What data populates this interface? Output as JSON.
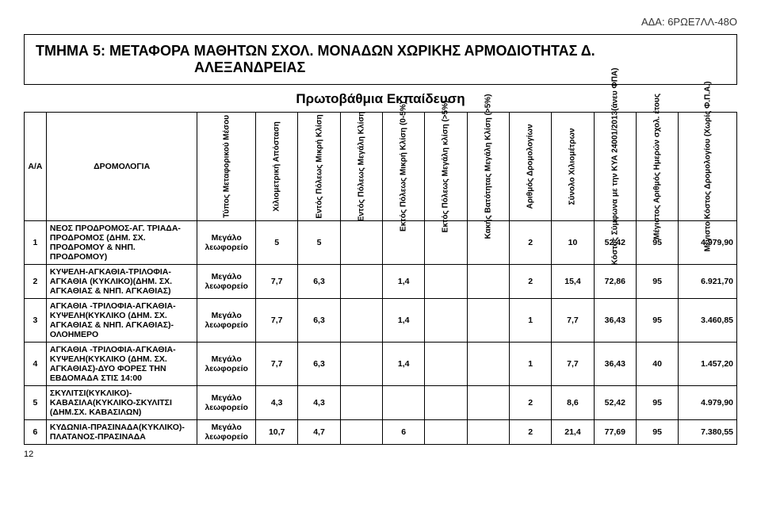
{
  "ada": "ΑΔΑ: 6ΡΩΕ7ΛΛ-48Ο",
  "title_line1": "ΤΜΗΜΑ 5: ΜΕΤΑΦΟΡΑ ΜΑΘΗΤΩΝ ΣΧΟΛ. ΜΟΝΑΔΩΝ ΧΩΡΙΚΗΣ ΑΡΜΟΔΙΟΤΗΤΑΣ Δ.",
  "title_line2": "ΑΛΕΞΑΝΔΡΕΙΑΣ",
  "subtitle": "Πρωτοβάθμια Εκπαίδευση",
  "headers": {
    "aa": "Α/Α",
    "rom": "ΔΡΟΜΟΛΟΓΙΑ",
    "h1": "Τύπος Μεταφορικού Μέσου",
    "h2": "Χιλιομετρική Απόσταση",
    "h3": "Εντός Πόλεως Μικρή Κλίση",
    "h4": "Εντός Πόλεως Μεγάλη Κλίση",
    "h5": "Εκτός Πόλεως Μικρή Κλίση (0-5%)",
    "h6": "Εκτός Πόλεως Μεγάλη κλίση (>5%)",
    "h7": "Κακής Βατότητας Μεγάλη Κλίση (>5%)",
    "h8": "Αριθμός Δρομολογίων",
    "h9": "Σύνολο Χιλιομέτρων",
    "h10": "Κόστος Σύμφωνα με την ΚΥΑ 24001/2013(άνευ ΦΠΑ)",
    "h11": "Μέγιστος Αριθμός Ημερών σχολ. έτους",
    "h12": "Μέγιστο Κόστος Δρομολογίου (Χωρίς Φ.Π.Α.)"
  },
  "vehicle_label": "Μεγάλο λεωφορείο",
  "rows": [
    {
      "aa": "1",
      "route": "ΝΕΟΣ ΠΡΟΔΡΟΜΟΣ-ΑΓ. ΤΡΙΑΔΑ-ΠΡΟΔΡΟΜΟΣ (ΔΗΜ. ΣΧ. ΠΡΟΔΡΟΜΟΥ & ΝΗΠ. ΠΡΟΔΡΟΜΟΥ)",
      "c2": "5",
      "c3": "5",
      "c4": "",
      "c5": "",
      "c6": "",
      "c7": "",
      "c8": "2",
      "c9": "10",
      "c10": "52,42",
      "c11": "95",
      "c12": "4.979,90"
    },
    {
      "aa": "2",
      "route": "ΚΥΨΕΛΗ-ΑΓΚΑΘΙΑ-ΤΡΙΛΟΦΙΑ-ΑΓΚΑΘΙΑ (ΚΥΚΛΙΚΟ)(ΔΗΜ. ΣΧ. ΑΓΚΑΘΙΑΣ & ΝΗΠ. ΑΓΚΑΘΙΑΣ)",
      "c2": "7,7",
      "c3": "6,3",
      "c4": "",
      "c5": "1,4",
      "c6": "",
      "c7": "",
      "c8": "2",
      "c9": "15,4",
      "c10": "72,86",
      "c11": "95",
      "c12": "6.921,70"
    },
    {
      "aa": "3",
      "route": "ΑΓΚΑΘΙΑ -ΤΡΙΛΟΦΙΑ-ΑΓΚΑΘΙΑ-ΚΥΨΕΛΗ(ΚΥΚΛΙΚΟ (ΔΗΜ. ΣΧ. ΑΓΚΑΘΙΑΣ & ΝΗΠ. ΑΓΚΑΘΙΑΣ)-ΟΛΟΗΜΕΡΟ",
      "c2": "7,7",
      "c3": "6,3",
      "c4": "",
      "c5": "1,4",
      "c6": "",
      "c7": "",
      "c8": "1",
      "c9": "7,7",
      "c10": "36,43",
      "c11": "95",
      "c12": "3.460,85"
    },
    {
      "aa": "4",
      "route": "ΑΓΚΑΘΙΑ -ΤΡΙΛΟΦΙΑ-ΑΓΚΑΘΙΑ-ΚΥΨΕΛΗ(ΚΥΚΛΙΚΟ (ΔΗΜ. ΣΧ. ΑΓΚΑΘΙΑΣ)-ΔΥΟ ΦΟΡΕΣ ΤΗΝ ΕΒΔΟΜΑΔΑ ΣΤΙΣ 14:00",
      "c2": "7,7",
      "c3": "6,3",
      "c4": "",
      "c5": "1,4",
      "c6": "",
      "c7": "",
      "c8": "1",
      "c9": "7,7",
      "c10": "36,43",
      "c11": "40",
      "c12": "1.457,20"
    },
    {
      "aa": "5",
      "route": "ΣΚΥΛΙΤΣΙ(ΚΥΚΛΙΚΟ)-ΚΑΒΑΣΙΛΑ(ΚΥΚΛΙΚΟ-ΣΚΥΛΙΤΣΙ (ΔΗΜ.ΣΧ. ΚΑΒΑΣΙΛΩΝ)",
      "c2": "4,3",
      "c3": "4,3",
      "c4": "",
      "c5": "",
      "c6": "",
      "c7": "",
      "c8": "2",
      "c9": "8,6",
      "c10": "52,42",
      "c11": "95",
      "c12": "4.979,90"
    },
    {
      "aa": "6",
      "route": "ΚΥΔΩΝΙΑ-ΠΡΑΣΙΝΑΔΑ(ΚΥΚΛΙΚΟ)-ΠΛΑΤΑΝΟΣ-ΠΡΑΣΙΝΑΔΑ",
      "c2": "10,7",
      "c3": "4,7",
      "c4": "",
      "c5": "6",
      "c6": "",
      "c7": "",
      "c8": "2",
      "c9": "21,4",
      "c10": "77,69",
      "c11": "95",
      "c12": "7.380,55"
    }
  ],
  "page": "12"
}
